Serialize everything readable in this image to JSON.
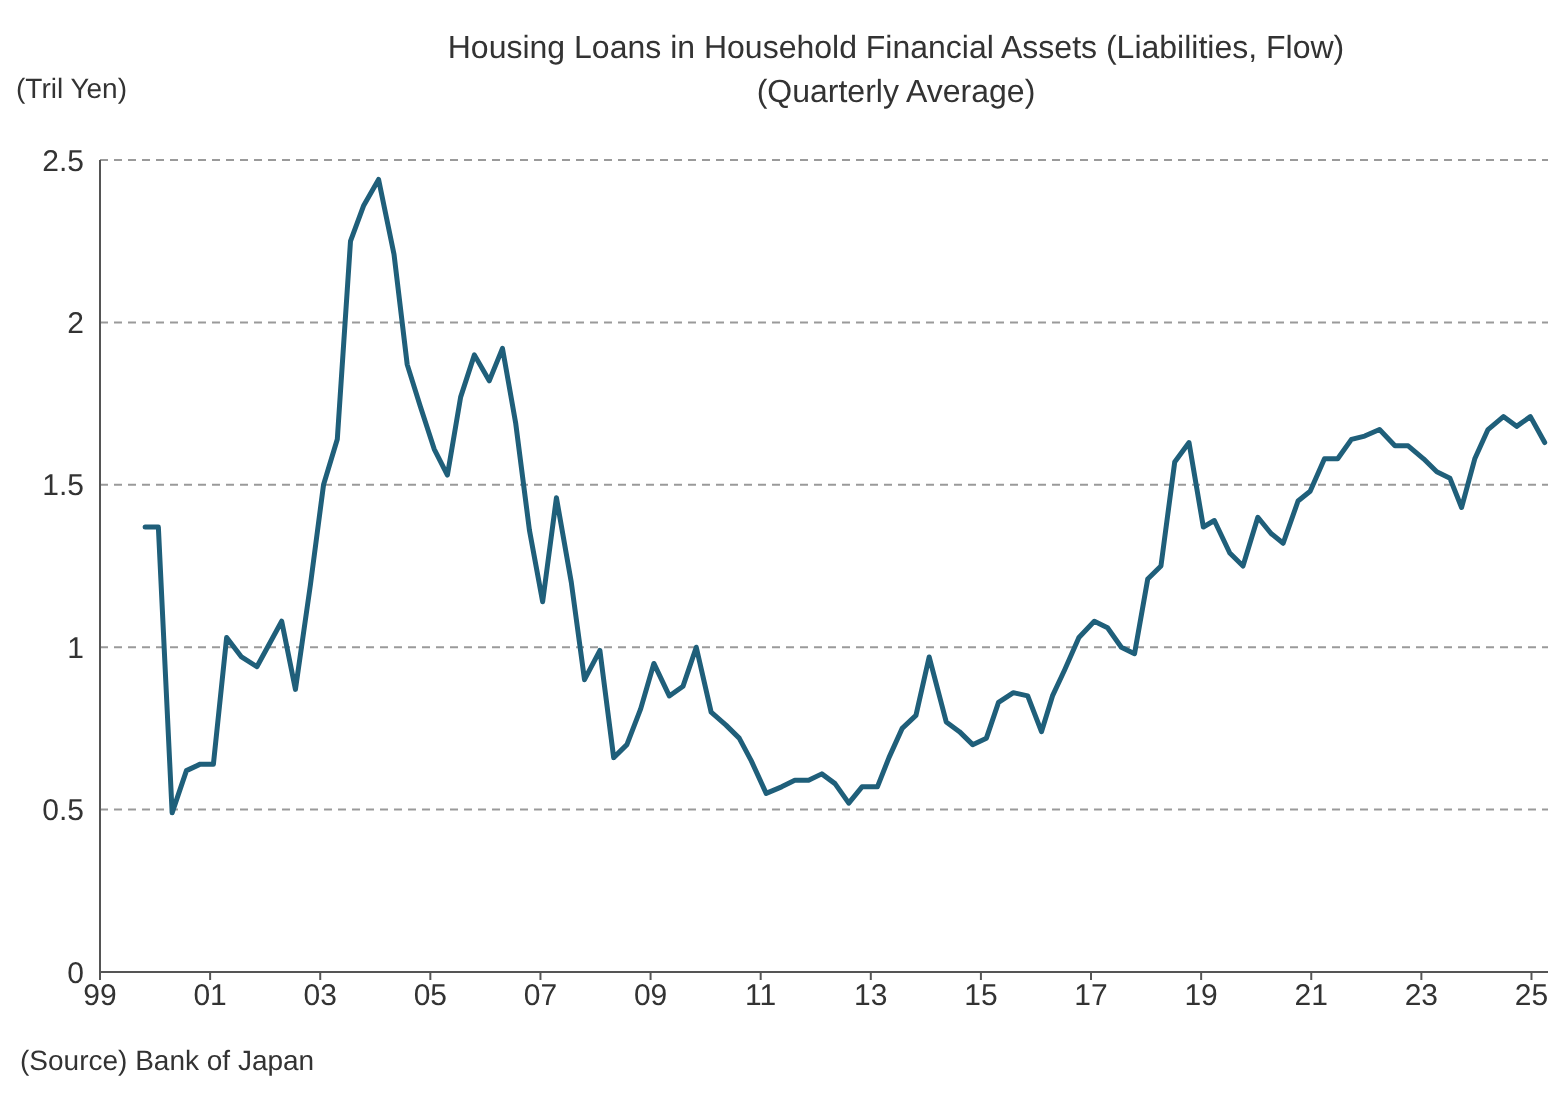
{
  "chart_data": {
    "type": "line",
    "title": "Housing Loans in Household Financial Assets (Liabilities, Flow)",
    "subtitle": "(Quarterly Average)",
    "ylabel": "(Tril Yen)",
    "annotations": [
      "(Source) Bank of Japan"
    ],
    "x": [
      1999.82,
      2000.06,
      2000.31,
      2000.57,
      2000.82,
      2001.06,
      2001.3,
      2001.57,
      2001.85,
      2002.3,
      2002.55,
      2002.82,
      2003.06,
      2003.31,
      2003.55,
      2003.79,
      2004.06,
      2004.34,
      2004.58,
      2004.82,
      2005.07,
      2005.31,
      2005.55,
      2005.8,
      2006.07,
      2006.31,
      2006.55,
      2006.8,
      2007.04,
      2007.29,
      2007.56,
      2007.8,
      2008.08,
      2008.33,
      2008.57,
      2008.82,
      2009.06,
      2009.34,
      2009.59,
      2009.83,
      2010.1,
      2010.37,
      2010.61,
      2010.83,
      2011.1,
      2011.38,
      2011.62,
      2011.87,
      2012.11,
      2012.35,
      2012.6,
      2012.84,
      2013.12,
      2013.33,
      2013.57,
      2013.82,
      2014.06,
      2014.37,
      2014.61,
      2014.85,
      2015.1,
      2015.32,
      2015.59,
      2015.85,
      2016.1,
      2016.3,
      2016.52,
      2016.78,
      2017.06,
      2017.3,
      2017.55,
      2017.79,
      2018.03,
      2018.27,
      2018.52,
      2018.78,
      2019.04,
      2019.24,
      2019.52,
      2019.76,
      2020.03,
      2020.27,
      2020.49,
      2020.76,
      2020.98,
      2021.24,
      2021.48,
      2021.73,
      2021.97,
      2022.24,
      2022.52,
      2022.76,
      2023.04,
      2023.28,
      2023.52,
      2023.73,
      2023.97,
      2024.21,
      2024.49,
      2024.73,
      2024.98,
      2025.24
    ],
    "series": [
      {
        "color": "#1f5f7a",
        "values": [
          1.37,
          1.37,
          0.49,
          0.62,
          0.64,
          0.64,
          1.03,
          0.97,
          0.94,
          1.08,
          0.87,
          1.19,
          1.5,
          1.64,
          2.25,
          2.36,
          2.44,
          2.21,
          1.87,
          1.74,
          1.61,
          1.53,
          1.77,
          1.9,
          1.82,
          1.92,
          1.69,
          1.36,
          1.14,
          1.46,
          1.2,
          0.9,
          0.99,
          0.66,
          0.7,
          0.81,
          0.95,
          0.85,
          0.88,
          1.0,
          0.8,
          0.76,
          0.72,
          0.65,
          0.55,
          0.57,
          0.59,
          0.59,
          0.61,
          0.58,
          0.52,
          0.57,
          0.57,
          0.66,
          0.75,
          0.79,
          0.97,
          0.77,
          0.74,
          0.7,
          0.72,
          0.83,
          0.86,
          0.85,
          0.74,
          0.85,
          0.93,
          1.03,
          1.08,
          1.06,
          1.0,
          0.98,
          1.21,
          1.25,
          1.57,
          1.63,
          1.37,
          1.39,
          1.29,
          1.25,
          1.4,
          1.35,
          1.32,
          1.45,
          1.48,
          1.58,
          1.58,
          1.64,
          1.65,
          1.67,
          1.62,
          1.62,
          1.58,
          1.54,
          1.52,
          1.43,
          1.58,
          1.67,
          1.71,
          1.68,
          1.71,
          1.63
        ]
      }
    ],
    "xlim": [
      1999,
      2025.3
    ],
    "xticks": [
      {
        "value": 1999,
        "label": "99"
      },
      {
        "value": 2001,
        "label": "01"
      },
      {
        "value": 2003,
        "label": "03"
      },
      {
        "value": 2005,
        "label": "05"
      },
      {
        "value": 2007,
        "label": "07"
      },
      {
        "value": 2009,
        "label": "09"
      },
      {
        "value": 2011,
        "label": "11"
      },
      {
        "value": 2013,
        "label": "13"
      },
      {
        "value": 2015,
        "label": "15"
      },
      {
        "value": 2017,
        "label": "17"
      },
      {
        "value": 2019,
        "label": "19"
      },
      {
        "value": 2021,
        "label": "21"
      },
      {
        "value": 2023,
        "label": "23"
      },
      {
        "value": 2025,
        "label": "25"
      }
    ],
    "ylim": [
      0,
      2.5
    ],
    "yticks": [
      0,
      0.5,
      1,
      1.5,
      2,
      2.5
    ],
    "grid": "y",
    "marker": "none",
    "line_style": "solid"
  }
}
